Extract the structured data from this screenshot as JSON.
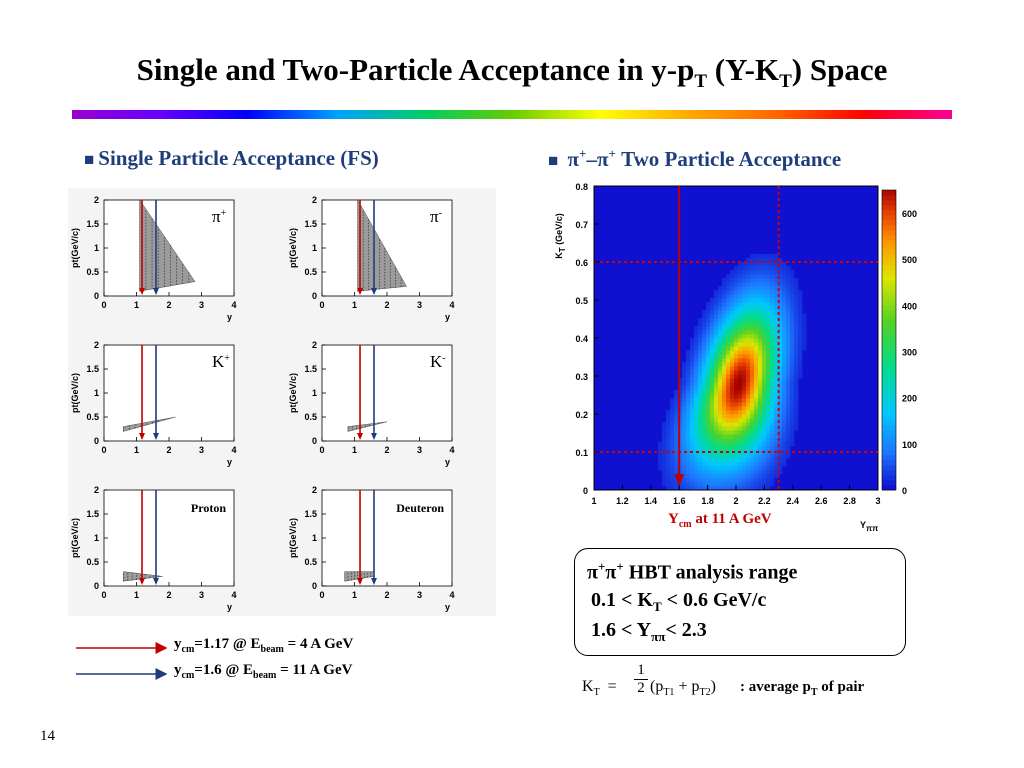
{
  "slide": {
    "title_main": "Single and Two-Particle Acceptance in y-p",
    "title_sub1": "T",
    "title_mid": " (Y-K",
    "title_sub2": "T",
    "title_end": ") Space",
    "page_number": "14"
  },
  "left_heading": "Single Particle Acceptance (FS)",
  "right_heading": {
    "pi": "π",
    "sup": "+",
    "dash": "–",
    "text": " Two Particle Acceptance"
  },
  "colors": {
    "heading": "#1f3d7a",
    "red_arrow": "#c00000",
    "blue_arrow": "#1f3d7a",
    "rainbow": [
      "#9900cc",
      "#0000ff",
      "#00cc66",
      "#ffff00",
      "#ff6600",
      "#ff0099"
    ]
  },
  "legend": {
    "line1": {
      "y": "y",
      "ysub": "cm",
      "eq": "=1.17  @ E",
      "esub": "beam",
      "val": "  =   4 A GeV"
    },
    "line2": {
      "y": "y",
      "ysub": "cm",
      "eq": "=1.6    @ E",
      "esub": "beam",
      "val": " = 11 A GeV"
    }
  },
  "ycm_label": {
    "y": "Y",
    "sub": "cm",
    "text": " at 11 A GeV"
  },
  "hbt": {
    "line1_a": "π",
    "line1_b": "π",
    "line1_text": " HBT analysis range",
    "line2_a": "0.1 < K",
    "line2_sub": "T",
    "line2_b": " < 0.6 GeV/c",
    "line3_a": "1.6 < Y",
    "line3_sub": "ππ",
    "line3_b": "< 2.3"
  },
  "formula": {
    "k": "K",
    "ksub": "T",
    "eq": "=",
    "num": "1",
    "den": "2",
    "p1": "p",
    "p1sub": "T1",
    "plus": "+",
    "p2": "p",
    "p2sub": "T2",
    "desc": ": average p",
    "descsub": "T",
    "descend": " of pair"
  },
  "chart_data": [
    {
      "type": "scatter",
      "panel": "pi+",
      "label": "π",
      "label_sup": "+",
      "xlabel": "y",
      "ylabel": "p",
      "ylabel_sub": "t",
      "ylabel_unit": "(GeV/c)",
      "xlim": [
        0,
        4
      ],
      "ylim": [
        0,
        2
      ],
      "xticks": [
        "0",
        "1",
        "2",
        "3",
        "4"
      ],
      "yticks": [
        "0",
        "0.5",
        "1",
        "1.5",
        "2"
      ],
      "region": {
        "ymin": 1.1,
        "ymax": 2.8,
        "pt_at_ymin": [
          0.1,
          2.0
        ],
        "pt_at_ymax": [
          0.3,
          0.3
        ]
      },
      "markers": [
        {
          "value": 1.17,
          "color": "#c00000"
        },
        {
          "value": 1.6,
          "color": "#1f3d7a"
        }
      ]
    },
    {
      "type": "scatter",
      "panel": "pi-",
      "label": "π",
      "label_sup": "-",
      "xlabel": "y",
      "ylabel": "p",
      "ylabel_sub": "t",
      "ylabel_unit": "(GeV/c)",
      "xlim": [
        0,
        4
      ],
      "ylim": [
        0,
        2
      ],
      "xticks": [
        "0",
        "1",
        "2",
        "3",
        "4"
      ],
      "yticks": [
        "0",
        "0.5",
        "1",
        "1.5",
        "2"
      ],
      "region": {
        "ymin": 1.1,
        "ymax": 2.6,
        "pt_at_ymin": [
          0.1,
          2.0
        ],
        "pt_at_ymax": [
          0.2,
          0.2
        ]
      },
      "markers": [
        {
          "value": 1.17,
          "color": "#c00000"
        },
        {
          "value": 1.6,
          "color": "#1f3d7a"
        }
      ]
    },
    {
      "type": "scatter",
      "panel": "K+",
      "label": "K",
      "label_sup": "+",
      "xlabel": "y",
      "ylabel": "p",
      "ylabel_sub": "t",
      "ylabel_unit": "(GeV/c)",
      "xlim": [
        0,
        4
      ],
      "ylim": [
        0,
        2
      ],
      "xticks": [
        "0",
        "1",
        "2",
        "3",
        "4"
      ],
      "yticks": [
        "0",
        "0.5",
        "1",
        "1.5",
        "2"
      ],
      "region": {
        "ymin": 0.6,
        "ymax": 2.2,
        "pt_at_ymin": [
          0.2,
          0.3
        ],
        "pt_at_ymax": [
          0.5,
          0.5
        ]
      },
      "markers": [
        {
          "value": 1.17,
          "color": "#c00000"
        },
        {
          "value": 1.6,
          "color": "#1f3d7a"
        }
      ]
    },
    {
      "type": "scatter",
      "panel": "K-",
      "label": "K",
      "label_sup": "-",
      "xlabel": "y",
      "ylabel": "p",
      "ylabel_sub": "t",
      "ylabel_unit": "(GeV/c)",
      "xlim": [
        0,
        4
      ],
      "ylim": [
        0,
        2
      ],
      "xticks": [
        "0",
        "1",
        "2",
        "3",
        "4"
      ],
      "yticks": [
        "0",
        "0.5",
        "1",
        "1.5",
        "2"
      ],
      "region": {
        "ymin": 0.8,
        "ymax": 2.0,
        "pt_at_ymin": [
          0.2,
          0.3
        ],
        "pt_at_ymax": [
          0.4,
          0.4
        ]
      },
      "markers": [
        {
          "value": 1.17,
          "color": "#c00000"
        },
        {
          "value": 1.6,
          "color": "#1f3d7a"
        }
      ]
    },
    {
      "type": "scatter",
      "panel": "proton",
      "label": "Proton",
      "label_sup": "",
      "xlabel": "y",
      "ylabel": "p",
      "ylabel_sub": "t",
      "ylabel_unit": "(GeV/c)",
      "xlim": [
        0,
        4
      ],
      "ylim": [
        0,
        2
      ],
      "xticks": [
        "0",
        "1",
        "2",
        "3",
        "4"
      ],
      "yticks": [
        "0",
        "0.5",
        "1",
        "1.5",
        "2"
      ],
      "region": {
        "ymin": 0.6,
        "ymax": 1.8,
        "pt_at_ymin": [
          0.1,
          0.3
        ],
        "pt_at_ymax": [
          0.2,
          0.2
        ]
      },
      "markers": [
        {
          "value": 1.17,
          "color": "#c00000"
        },
        {
          "value": 1.6,
          "color": "#1f3d7a"
        }
      ]
    },
    {
      "type": "scatter",
      "panel": "deuteron",
      "label": "Deuteron",
      "label_sup": "",
      "xlabel": "y",
      "ylabel": "p",
      "ylabel_sub": "t",
      "ylabel_unit": "(GeV/c)",
      "xlim": [
        0,
        4
      ],
      "ylim": [
        0,
        2
      ],
      "xticks": [
        "0",
        "1",
        "2",
        "3",
        "4"
      ],
      "yticks": [
        "0",
        "0.5",
        "1",
        "1.5",
        "2"
      ],
      "region": {
        "ymin": 0.7,
        "ymax": 1.6,
        "pt_at_ymin": [
          0.1,
          0.3
        ],
        "pt_at_ymax": [
          0.2,
          0.3
        ]
      },
      "markers": [
        {
          "value": 1.17,
          "color": "#c00000"
        },
        {
          "value": 1.6,
          "color": "#1f3d7a"
        }
      ]
    },
    {
      "type": "heatmap",
      "panel": "pipi",
      "xlabel": "Y",
      "xlabel_sub": "ππ",
      "ylabel": "K",
      "ylabel_sub": "T",
      "ylabel_unit": " (GeV/c)",
      "xlim": [
        1,
        3
      ],
      "ylim": [
        0,
        0.8
      ],
      "xticks": [
        "1",
        "1.2",
        "1.4",
        "1.6",
        "1.8",
        "2",
        "2.2",
        "2.4",
        "2.6",
        "2.8",
        "3"
      ],
      "yticks": [
        "0",
        "0.1",
        "0.2",
        "0.3",
        "0.4",
        "0.5",
        "0.6",
        "0.7",
        "0.8"
      ],
      "zlim": [
        0,
        650
      ],
      "zticks": [
        "0",
        "100",
        "200",
        "300",
        "400",
        "500",
        "600"
      ],
      "peak": {
        "x": 2.02,
        "y": 0.28,
        "z": 650
      },
      "hbt_range": {
        "x": [
          1.6,
          2.3
        ],
        "y": [
          0.1,
          0.6
        ]
      },
      "ycm_marker": 1.6
    }
  ]
}
